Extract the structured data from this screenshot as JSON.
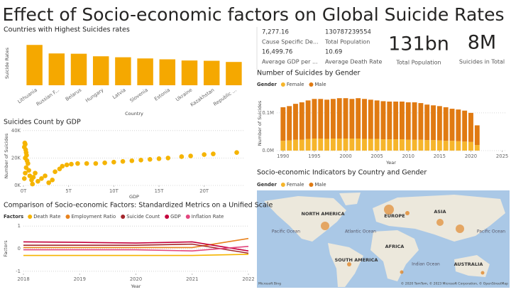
{
  "title": "Effect of Socio-economic factors on Global Suicide Rates",
  "cards": [
    {
      "value": "7,277.16",
      "label": "Cause Specific De..."
    },
    {
      "value": "130787239554",
      "label": "Total Population"
    },
    {
      "value": "16,499.76",
      "label": "Average GDP per ..."
    },
    {
      "value": "10.69",
      "label": "Average Death Rate"
    },
    {
      "value": "131bn",
      "label": "Total Population"
    },
    {
      "value": "8M",
      "label": "Suicides in Total"
    }
  ],
  "chart_data": [
    {
      "type": "bar",
      "title": "Countries with Highest Suicides rates",
      "xlabel": "Country",
      "ylabel": "Suicide Rates",
      "categories": [
        "Lithuania",
        "Russian F...",
        "Belarus",
        "Hungary",
        "Latvia",
        "Slovenia",
        "Estonia",
        "Ukraine",
        "Kazakhstan",
        "Republic ..."
      ],
      "values": [
        41.2,
        32.5,
        32.2,
        29.6,
        28.6,
        27.4,
        26.5,
        25.3,
        25.0,
        23.8
      ],
      "color": "#F5A800",
      "ylim": [
        0,
        45
      ]
    },
    {
      "type": "stacked_bar",
      "title": "Number of Suicides by Gender",
      "legend_title": "Gender",
      "xlabel": "Year",
      "ylabel": "Number of Suicides",
      "x": [
        1990,
        1991,
        1992,
        1993,
        1994,
        1995,
        1996,
        1997,
        1998,
        1999,
        2000,
        2001,
        2002,
        2003,
        2004,
        2005,
        2006,
        2007,
        2008,
        2009,
        2010,
        2011,
        2012,
        2013,
        2014,
        2015,
        2016,
        2017,
        2018,
        2019,
        2020,
        2021
      ],
      "series": [
        {
          "name": "Female",
          "color": "#F6B52B",
          "values": [
            26000,
            27000,
            29000,
            29000,
            31000,
            32000,
            32000,
            31000,
            32000,
            32000,
            32000,
            32000,
            32000,
            31000,
            31000,
            31000,
            30000,
            30000,
            30000,
            30000,
            29000,
            29000,
            29000,
            28000,
            28000,
            27000,
            26000,
            26000,
            25000,
            24000,
            23000,
            15000
          ]
        },
        {
          "name": "Male",
          "color": "#E07A12",
          "values": [
            89000,
            91000,
            95000,
            99000,
            102000,
            105000,
            105000,
            104000,
            105000,
            107000,
            107000,
            105000,
            107000,
            106000,
            104000,
            102000,
            101000,
            100000,
            100000,
            100000,
            99000,
            99000,
            97000,
            94000,
            92000,
            91000,
            89000,
            85000,
            84000,
            82000,
            77000,
            52000
          ]
        }
      ],
      "xlim": [
        1989,
        2025.5
      ],
      "xticks": [
        1990,
        1995,
        2000,
        2005,
        2010,
        2015,
        2020,
        2025
      ],
      "ylim": [
        0,
        145000
      ],
      "yticks": [
        {
          "value": 0,
          "label": "0.0M"
        },
        {
          "value": 100000,
          "label": "0.1M"
        }
      ]
    },
    {
      "type": "scatter",
      "title": "Suicides Count by GDP",
      "xlabel": "GDP",
      "ylabel": "Number of Suicides",
      "color": "#F5B400",
      "x": [
        100000000000,
        150000000000,
        200000000000,
        250000000000,
        300000000000,
        350000000000,
        200000000000,
        400000000000,
        500000000000,
        300000000000,
        600000000000,
        200000000000,
        700000000000,
        100000000000,
        900000000000,
        1100000000000,
        1300000000000,
        1600000000000,
        2000000000000,
        2400000000000,
        2800000000000,
        3200000000000,
        1000000000000,
        3500000000000,
        4000000000000,
        4300000000000,
        4800000000000,
        5300000000000,
        6000000000000,
        7000000000000,
        8000000000000,
        9000000000000,
        10000000000000,
        11000000000000,
        12000000000000,
        13000000000000,
        14000000000000,
        15000000000000,
        16000000000000,
        17500000000000,
        18500000000000,
        20000000000000,
        21000000000000,
        23600000000000
      ],
      "values": [
        28000,
        31000,
        30000,
        26000,
        24000,
        22000,
        20000,
        18000,
        16000,
        13000,
        11000,
        9000,
        7000,
        5000,
        4000,
        6000,
        9000,
        3000,
        5000,
        7000,
        2000,
        4000,
        1000,
        10000,
        12000,
        14000,
        15000,
        15500,
        16000,
        16000,
        16000,
        16500,
        17000,
        17500,
        18000,
        18500,
        19000,
        19500,
        20000,
        21000,
        21500,
        22500,
        23000,
        24000
      ],
      "xlim": [
        0,
        24500000000000
      ],
      "xticks": [
        {
          "value": 0,
          "label": "0T"
        },
        {
          "value": 5000000000000,
          "label": "5T"
        },
        {
          "value": 10000000000000,
          "label": "10T"
        },
        {
          "value": 15000000000000,
          "label": "15T"
        },
        {
          "value": 20000000000000,
          "label": "20T"
        }
      ],
      "ylim": [
        0,
        43000
      ],
      "yticks": [
        {
          "value": 0,
          "label": "0K"
        },
        {
          "value": 20000,
          "label": "20K"
        },
        {
          "value": 40000,
          "label": "40K"
        }
      ]
    },
    {
      "type": "line",
      "title": "Comparison of Socio-economic Factors: Standardized Metrics on a Unified Scale",
      "legend_title": "Factors",
      "xlabel": "Year",
      "ylabel": "Factors",
      "x": [
        2018,
        2019,
        2020,
        2021,
        2022
      ],
      "series": [
        {
          "name": "Death Rate",
          "color": "#F5B400",
          "values": [
            -0.3,
            -0.3,
            -0.3,
            -0.3,
            -0.25
          ]
        },
        {
          "name": "Employment Ratio",
          "color": "#E8821E",
          "values": [
            0.05,
            0.05,
            0.05,
            0.05,
            0.45
          ]
        },
        {
          "name": "Suicide Count",
          "color": "#A4262C",
          "values": [
            0.15,
            0.15,
            0.15,
            0.2,
            -0.2
          ]
        },
        {
          "name": "GDP",
          "color": "#C4003C",
          "values": [
            0.3,
            0.28,
            0.25,
            0.3,
            -0.1
          ]
        },
        {
          "name": "Inflation Rate",
          "color": "#E3467E",
          "values": [
            -0.05,
            -0.05,
            -0.05,
            -0.1,
            0.1
          ]
        }
      ],
      "xlim": [
        2018,
        2022
      ],
      "xticks": [
        2018,
        2019,
        2020,
        2021,
        2022
      ],
      "ylim": [
        -1.1,
        1.1
      ],
      "yticks": [
        1,
        0,
        -1
      ]
    }
  ],
  "map": {
    "title": "Socio-economic Indicators by Country and Gender",
    "legend_title": "Gender",
    "legend": [
      {
        "name": "Female",
        "color": "#F6B52B"
      },
      {
        "name": "Male",
        "color": "#E07A12"
      }
    ],
    "continents": [
      "NORTH AMERICA",
      "EUROPE",
      "ASIA",
      "AFRICA",
      "SOUTH AMERICA",
      "AUSTRALIA"
    ],
    "oceans": [
      "Pacific Ocean",
      "Atlantic Ocean",
      "Pacific Ocean",
      "Indian Ocean"
    ],
    "attribution": "© 2020 TomTom, © 2023 Microsoft Corporation, © OpenStreetMap",
    "brand": "Microsoft Bing"
  }
}
